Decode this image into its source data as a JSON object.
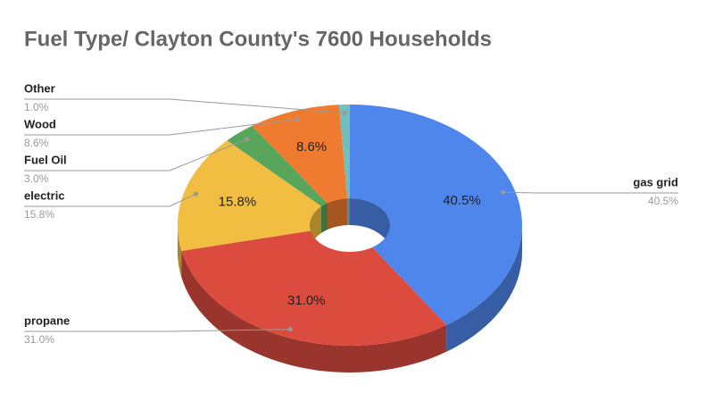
{
  "chart_data": {
    "type": "donut3d",
    "title": "Fuel Type/ Clayton County's 7600  Households",
    "categories": [
      "gas grid",
      "propane",
      "electric",
      "Fuel Oil",
      "Wood",
      "Other"
    ],
    "values": [
      40.5,
      31.0,
      15.8,
      3.0,
      8.6,
      1.0
    ],
    "value_labels": [
      "40.5%",
      "31.0%",
      "15.8%",
      "3.0%",
      "8.6%",
      "1.0%"
    ],
    "colors": [
      "#4f86ec",
      "#db4c3f",
      "#f2be42",
      "#58a55c",
      "#ee7b30",
      "#6fbfbf"
    ]
  }
}
